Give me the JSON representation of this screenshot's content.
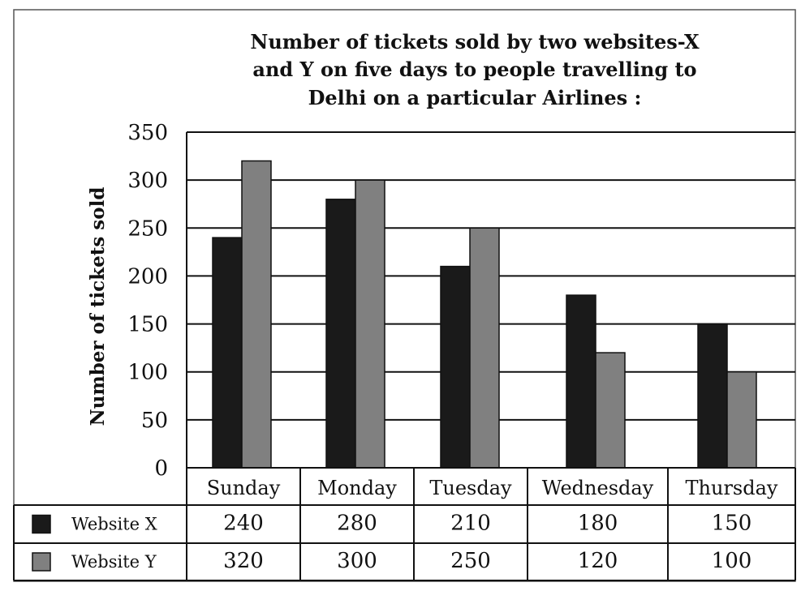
{
  "chart_data": {
    "type": "bar",
    "title_lines": [
      "Number of tickets sold by two websites-X",
      "and Y on five days to people travelling to",
      "Delhi on a particular Airlines :"
    ],
    "ylabel": "Number of tickets sold",
    "xlabel": "",
    "ylim": [
      0,
      350
    ],
    "yticks": [
      0,
      50,
      100,
      150,
      200,
      250,
      300,
      350
    ],
    "grid": true,
    "categories": [
      "Sunday",
      "Monday",
      "Tuesday",
      "Wednesday",
      "Thursday"
    ],
    "series": [
      {
        "name": "Website X",
        "color": "#1a1a1a",
        "values": [
          240,
          280,
          210,
          180,
          150
        ],
        "table_values": [
          "240",
          "280",
          "210",
          "180",
          "150"
        ]
      },
      {
        "name": "Website Y",
        "color": "#808080",
        "values": [
          320,
          300,
          250,
          120,
          100
        ],
        "table_values": [
          "320",
          "300",
          "250",
          "120",
          "100"
        ]
      }
    ]
  }
}
